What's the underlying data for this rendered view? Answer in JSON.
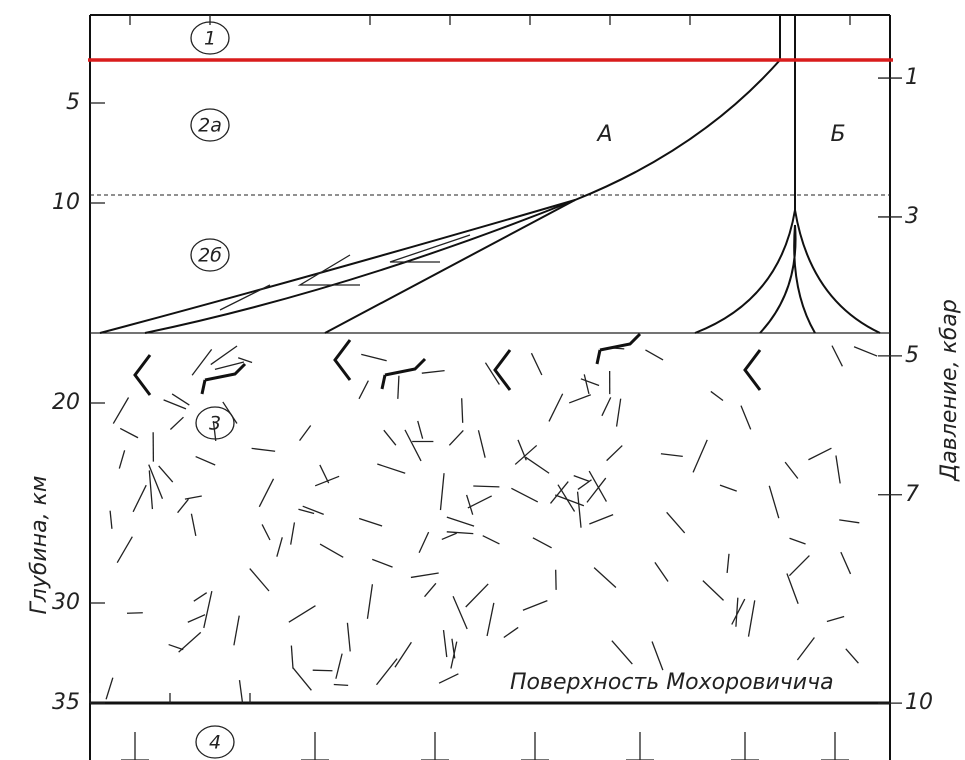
{
  "depth_axis": {
    "label": "Глубина, км",
    "ticks": [
      5,
      10,
      20,
      30,
      35
    ]
  },
  "pressure_axis": {
    "label": "Давление, кбар",
    "ticks": [
      1,
      3,
      5,
      7,
      10
    ]
  },
  "layers": [
    {
      "label": "1"
    },
    {
      "label": "2а"
    },
    {
      "label": "2б"
    },
    {
      "label": "3"
    },
    {
      "label": "4"
    }
  ],
  "profiles": [
    {
      "label": "А"
    },
    {
      "label": "Б"
    }
  ],
  "moho_label": "Поверхность Мохоровичича"
}
